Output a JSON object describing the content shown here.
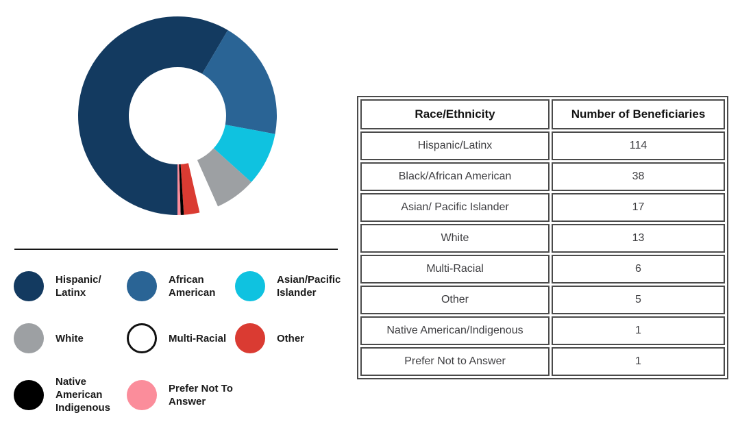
{
  "chart_data": {
    "type": "pie",
    "subtype": "donut",
    "categories": [
      "Hispanic/Latinx",
      "Black/African American",
      "Asian/ Pacific Islander",
      "White",
      "Multi-Racial",
      "Other",
      "Native American/Indigenous",
      "Prefer Not to Answer"
    ],
    "values": [
      114,
      38,
      17,
      13,
      6,
      5,
      1,
      1
    ],
    "colors": [
      "#133A60",
      "#2A6495",
      "#0FC2E0",
      "#9DA0A3",
      "#FFFFFF",
      "#DA3B32",
      "#000000",
      "#FB8D9B"
    ],
    "start_angle_deg": 180,
    "direction": "clockwise",
    "inner_radius_ratio": 0.49,
    "legend_position": "bottom-left",
    "title": ""
  },
  "legend": {
    "items": [
      {
        "label": "Hispanic/\nLatinx",
        "color": "#133A60",
        "ring": false
      },
      {
        "label": "African\nAmerican",
        "color": "#2A6495",
        "ring": false
      },
      {
        "label": "Asian/Pacific\nIslander",
        "color": "#0FC2E0",
        "ring": false
      },
      {
        "label": "White",
        "color": "#9DA0A3",
        "ring": false
      },
      {
        "label": "Multi-Racial",
        "color": "#FFFFFF",
        "ring": true
      },
      {
        "label": "Other",
        "color": "#DA3B32",
        "ring": false
      },
      {
        "label": "Native\nAmerican\nIndigenous",
        "color": "#000000",
        "ring": false
      },
      {
        "label": "Prefer Not To\nAnswer",
        "color": "#FB8D9B",
        "ring": false
      }
    ]
  },
  "table": {
    "headers": [
      "Race/Ethnicity",
      "Number of Beneficiaries"
    ],
    "rows": [
      [
        "Hispanic/Latinx",
        "114"
      ],
      [
        "Black/African American",
        "38"
      ],
      [
        "Asian/ Pacific Islander",
        "17"
      ],
      [
        "White",
        "13"
      ],
      [
        "Multi-Racial",
        "6"
      ],
      [
        "Other",
        "5"
      ],
      [
        "Native American/Indigenous",
        "1"
      ],
      [
        "Prefer Not to Answer",
        "1"
      ]
    ]
  }
}
